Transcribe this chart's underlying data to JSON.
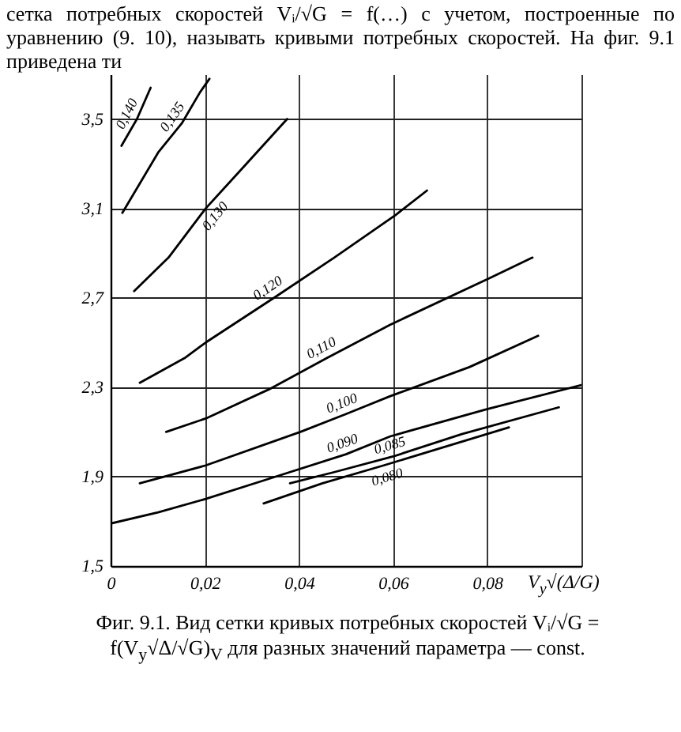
{
  "chart_data": {
    "type": "line",
    "annotations": [
      "сетка потребных скоростей Vᵢ/√G = f(…) с учетом, построенные по уравнению (9. 10), называть кривыми потребных скоростей. На фиг. 9.1 приведена ти",
      "Фиг. 9.1. Вид сетки кривых потребных скоростей Vᵢ/√G = f(V$_{y}$√Δ/√G)$_{V}$ для разных значений параметра — const."
    ],
    "xlabel": "V$_{y}$√(Δ/G)",
    "xlim": [
      0,
      0.1
    ],
    "xticks": [
      0,
      {
        "value": 0.02,
        "label": "0,02"
      },
      {
        "value": 0.04,
        "label": "0,04"
      },
      {
        "value": 0.06,
        "label": "0,06"
      },
      {
        "value": 0.08,
        "label": "0,08"
      },
      {
        "value": 0.1,
        "label": null
      }
    ],
    "ylim": [
      1.5,
      3.7
    ],
    "yticks": [
      {
        "value": 1.5,
        "label": "1,5"
      },
      {
        "value": 1.9,
        "label": "1,9"
      },
      {
        "value": 2.3,
        "label": "2,3"
      },
      {
        "value": 2.7,
        "label": "2,7"
      },
      {
        "value": 3.1,
        "label": "3,1"
      },
      {
        "value": 3.5,
        "label": "3,5"
      }
    ],
    "grid": true,
    "line_style": "solid",
    "series": [
      {
        "name": "0,140",
        "color": "#000000",
        "x": [
          0.0023,
          0.0056,
          0.0085
        ],
        "values": [
          3.38,
          3.5,
          3.64
        ]
      },
      {
        "name": "0,135",
        "color": "#000000",
        "x": [
          0.0025,
          0.0101,
          0.0151,
          0.019,
          0.021
        ],
        "values": [
          3.08,
          3.35,
          3.48,
          3.62,
          3.68
        ]
      },
      {
        "name": "0,130",
        "color": "#000000",
        "x": [
          0.005,
          0.0123,
          0.0202,
          0.028,
          0.0375
        ],
        "values": [
          2.73,
          2.88,
          3.1,
          3.28,
          3.5
        ]
      },
      {
        "name": "0,120",
        "color": "#000000",
        "x": [
          0.0062,
          0.0157,
          0.0202,
          0.0347,
          0.0475,
          0.0605,
          0.0672
        ],
        "values": [
          2.32,
          2.43,
          2.5,
          2.7,
          2.88,
          3.07,
          3.18
        ]
      },
      {
        "name": "0,110",
        "color": "#000000",
        "x": [
          0.0118,
          0.0202,
          0.0336,
          0.0459,
          0.0594,
          0.0807,
          0.0896
        ],
        "values": [
          2.1,
          2.16,
          2.29,
          2.43,
          2.58,
          2.79,
          2.88
        ]
      },
      {
        "name": "0,100",
        "color": "#000000",
        "x": [
          0.0062,
          0.0202,
          0.0403,
          0.05,
          0.0594,
          0.0762,
          0.0908
        ],
        "values": [
          1.87,
          1.95,
          2.1,
          2.18,
          2.26,
          2.39,
          2.53
        ]
      },
      {
        "name": "0,090",
        "color": "#000000",
        "x": [
          0,
          0.0101,
          0.0202,
          0.0336,
          0.05,
          0.0594,
          0.0796,
          0.1
        ],
        "values": [
          1.69,
          1.74,
          1.8,
          1.89,
          2.0,
          2.08,
          2.2,
          2.31
        ]
      },
      {
        "name": "0,085",
        "color": "#000000",
        "x": [
          0.0381,
          0.0475,
          0.06,
          0.0746,
          0.0952
        ],
        "values": [
          1.87,
          1.92,
          1.99,
          2.09,
          2.21
        ]
      },
      {
        "name": "0,080",
        "color": "#000000",
        "x": [
          0.0325,
          0.045,
          0.058,
          0.0705,
          0.0846
        ],
        "values": [
          1.78,
          1.87,
          1.95,
          2.03,
          2.12
        ]
      }
    ]
  }
}
